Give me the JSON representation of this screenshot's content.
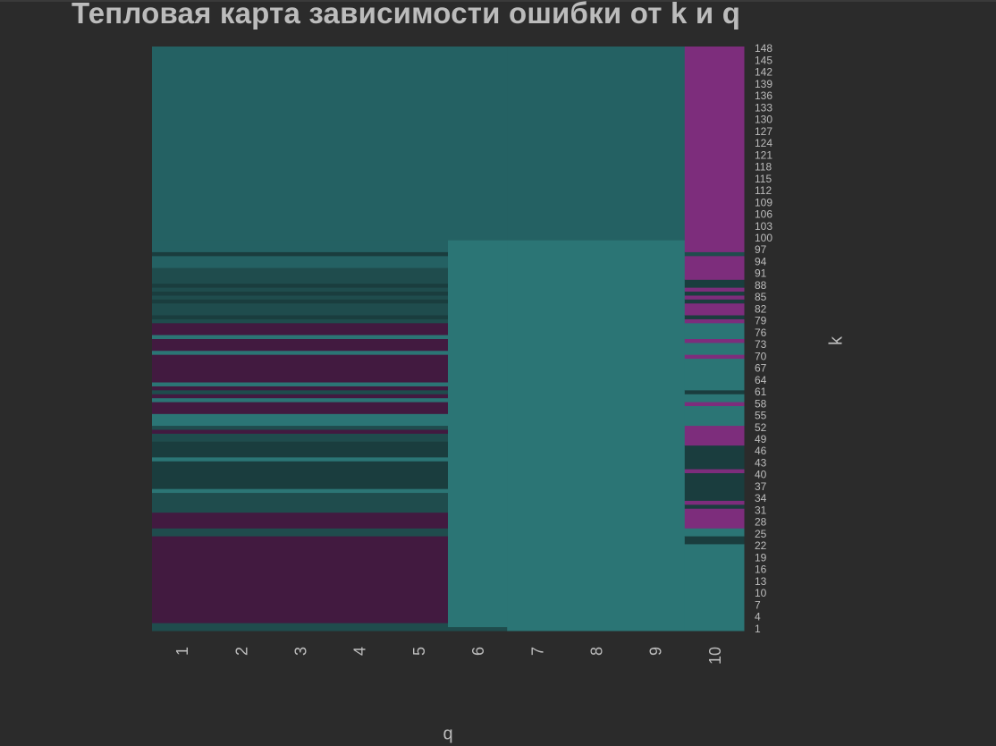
{
  "chart_data": {
    "type": "heatmap",
    "title": "Тепловая карта зависимости ошибки от k и q",
    "xlabel": "q",
    "ylabel": "k",
    "x_categories": [
      "1",
      "2",
      "3",
      "4",
      "5",
      "6",
      "7",
      "8",
      "9",
      "10"
    ],
    "y_tick_labels": [
      "1",
      "4",
      "7",
      "10",
      "13",
      "16",
      "19",
      "22",
      "25",
      "28",
      "31",
      "34",
      "37",
      "40",
      "43",
      "46",
      "49",
      "52",
      "55",
      "58",
      "61",
      "64",
      "67",
      "70",
      "73",
      "76",
      "79",
      "82",
      "85",
      "88",
      "91",
      "94",
      "97",
      "100",
      "103",
      "106",
      "109",
      "112",
      "115",
      "118",
      "121",
      "124",
      "127",
      "130",
      "133",
      "136",
      "139",
      "142",
      "145",
      "148"
    ],
    "k_range": [
      1,
      148
    ],
    "legend": "none",
    "grid": false,
    "colors": {
      "purple_dark": "#421a40",
      "teal_dark": "#1a3d3e",
      "teal_mid": "#1f4c4d",
      "teal_upper": "#246163",
      "teal_light": "#2b7575",
      "teal_band": "#2e7a7a",
      "magenta": "#7d2d7c"
    },
    "column_groups": [
      {
        "q": [
          "1",
          "2",
          "3",
          "4",
          "5"
        ],
        "bands": [
          {
            "k": [
              1,
              2
            ],
            "color": "teal_mid"
          },
          {
            "k": [
              3,
              24
            ],
            "color": "purple_dark"
          },
          {
            "k": [
              25,
              26
            ],
            "color": "teal_mid"
          },
          {
            "k": [
              27,
              30
            ],
            "color": "purple_dark"
          },
          {
            "k": [
              31,
              35
            ],
            "color": "teal_mid"
          },
          {
            "k": [
              36,
              36
            ],
            "color": "teal_light"
          },
          {
            "k": [
              37,
              43
            ],
            "color": "teal_dark"
          },
          {
            "k": [
              44,
              44
            ],
            "color": "teal_light"
          },
          {
            "k": [
              45,
              48
            ],
            "color": "teal_dark"
          },
          {
            "k": [
              49,
              50
            ],
            "color": "teal_mid"
          },
          {
            "k": [
              51,
              51
            ],
            "color": "purple_dark"
          },
          {
            "k": [
              52,
              52
            ],
            "color": "teal_mid"
          },
          {
            "k": [
              53,
              55
            ],
            "color": "teal_light"
          },
          {
            "k": [
              56,
              58
            ],
            "color": "purple_dark"
          },
          {
            "k": [
              59,
              59
            ],
            "color": "teal_light"
          },
          {
            "k": [
              60,
              60
            ],
            "color": "purple_dark"
          },
          {
            "k": [
              61,
              61
            ],
            "color": "teal_mid"
          },
          {
            "k": [
              62,
              62
            ],
            "color": "purple_dark"
          },
          {
            "k": [
              63,
              63
            ],
            "color": "teal_light"
          },
          {
            "k": [
              64,
              70
            ],
            "color": "purple_dark"
          },
          {
            "k": [
              71,
              71
            ],
            "color": "teal_light"
          },
          {
            "k": [
              72,
              74
            ],
            "color": "purple_dark"
          },
          {
            "k": [
              75,
              75
            ],
            "color": "teal_light"
          },
          {
            "k": [
              76,
              78
            ],
            "color": "purple_dark"
          },
          {
            "k": [
              79,
              79
            ],
            "color": "teal_mid"
          },
          {
            "k": [
              80,
              80
            ],
            "color": "teal_dark"
          },
          {
            "k": [
              81,
              83
            ],
            "color": "teal_mid"
          },
          {
            "k": [
              84,
              84
            ],
            "color": "teal_dark"
          },
          {
            "k": [
              85,
              85
            ],
            "color": "teal_mid"
          },
          {
            "k": [
              86,
              86
            ],
            "color": "teal_dark"
          },
          {
            "k": [
              87,
              87
            ],
            "color": "teal_mid"
          },
          {
            "k": [
              88,
              88
            ],
            "color": "teal_dark"
          },
          {
            "k": [
              89,
              92
            ],
            "color": "teal_mid"
          },
          {
            "k": [
              93,
              95
            ],
            "color": "teal_upper"
          },
          {
            "k": [
              96,
              96
            ],
            "color": "teal_dark"
          },
          {
            "k": [
              97,
              99
            ],
            "color": "teal_upper"
          },
          {
            "k": [
              100,
              148
            ],
            "color": "teal_upper"
          }
        ]
      },
      {
        "q": [
          "6"
        ],
        "bands": [
          {
            "k": [
              1,
              1
            ],
            "color": "teal_mid"
          },
          {
            "k": [
              2,
              99
            ],
            "color": "teal_light"
          },
          {
            "k": [
              100,
              148
            ],
            "color": "teal_upper"
          }
        ]
      },
      {
        "q": [
          "7",
          "8",
          "9"
        ],
        "bands": [
          {
            "k": [
              1,
              99
            ],
            "color": "teal_light"
          },
          {
            "k": [
              100,
              148
            ],
            "color": "teal_upper"
          }
        ]
      },
      {
        "q": [
          "10"
        ],
        "bands": [
          {
            "k": [
              1,
              22
            ],
            "color": "teal_light"
          },
          {
            "k": [
              23,
              24
            ],
            "color": "teal_dark"
          },
          {
            "k": [
              25,
              26
            ],
            "color": "teal_light"
          },
          {
            "k": [
              27,
              31
            ],
            "color": "magenta"
          },
          {
            "k": [
              32,
              32
            ],
            "color": "teal_dark"
          },
          {
            "k": [
              33,
              33
            ],
            "color": "magenta"
          },
          {
            "k": [
              34,
              40
            ],
            "color": "teal_dark"
          },
          {
            "k": [
              41,
              41
            ],
            "color": "magenta"
          },
          {
            "k": [
              42,
              47
            ],
            "color": "teal_dark"
          },
          {
            "k": [
              48,
              49
            ],
            "color": "magenta"
          },
          {
            "k": [
              50,
              52
            ],
            "color": "magenta"
          },
          {
            "k": [
              53,
              57
            ],
            "color": "teal_light"
          },
          {
            "k": [
              58,
              58
            ],
            "color": "magenta"
          },
          {
            "k": [
              59,
              60
            ],
            "color": "teal_light"
          },
          {
            "k": [
              61,
              61
            ],
            "color": "teal_dark"
          },
          {
            "k": [
              62,
              69
            ],
            "color": "teal_light"
          },
          {
            "k": [
              70,
              70
            ],
            "color": "magenta"
          },
          {
            "k": [
              71,
              73
            ],
            "color": "teal_light"
          },
          {
            "k": [
              74,
              74
            ],
            "color": "magenta"
          },
          {
            "k": [
              75,
              78
            ],
            "color": "teal_light"
          },
          {
            "k": [
              79,
              79
            ],
            "color": "magenta"
          },
          {
            "k": [
              80,
              80
            ],
            "color": "teal_dark"
          },
          {
            "k": [
              81,
              83
            ],
            "color": "magenta"
          },
          {
            "k": [
              84,
              84
            ],
            "color": "teal_dark"
          },
          {
            "k": [
              85,
              85
            ],
            "color": "magenta"
          },
          {
            "k": [
              86,
              86
            ],
            "color": "teal_dark"
          },
          {
            "k": [
              87,
              87
            ],
            "color": "magenta"
          },
          {
            "k": [
              88,
              89
            ],
            "color": "teal_dark"
          },
          {
            "k": [
              90,
              95
            ],
            "color": "magenta"
          },
          {
            "k": [
              96,
              96
            ],
            "color": "teal_mid"
          },
          {
            "k": [
              97,
              148
            ],
            "color": "magenta"
          }
        ]
      }
    ]
  }
}
